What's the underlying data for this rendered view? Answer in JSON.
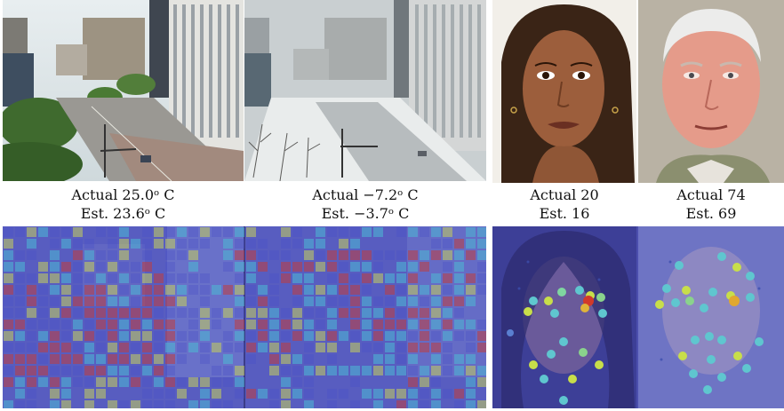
{
  "captions": {
    "city_warm": {
      "actual": "Actual 25.0ᵒ C",
      "estimate": "Est. 23.6ᵒ C"
    },
    "city_cold": {
      "actual": "Actual −7.2ᵒ C",
      "estimate": "Est. −3.7ᵒ C"
    },
    "face_young": {
      "actual": "Actual 20",
      "estimate": "Est. 16"
    },
    "face_old": {
      "actual": "Actual 74",
      "estimate": "Est. 69"
    }
  },
  "images": {
    "city_warm": "street-scene-summer",
    "city_cold": "street-scene-snow",
    "face_young": "young-woman-portrait",
    "face_old": "elderly-man-portrait",
    "heatmap_city": "city-attention-heatmap",
    "heatmap_faces": "face-landmark-heatmap"
  },
  "colors": {
    "heat_low": "#4a4fc8",
    "heat_mid": "#4fc9d6",
    "heat_high": "#d9e24a",
    "heat_peak": "#d23a2a"
  }
}
